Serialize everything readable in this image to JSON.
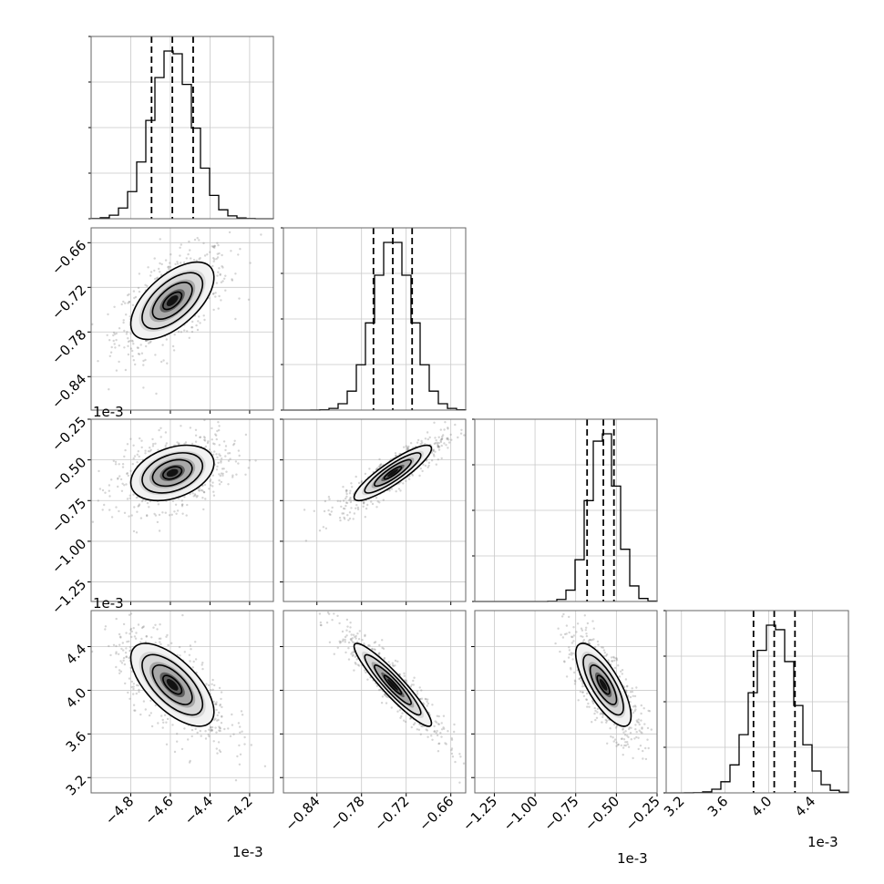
{
  "chart_data": {
    "type": "corner",
    "parameters": [
      {
        "index": 0,
        "offset_label": "1e-3",
        "median": -4.59,
        "sigma": 0.105,
        "q16": -4.695,
        "q50": -4.59,
        "q84": -4.485,
        "range": [
          -5.0,
          -4.08
        ],
        "ticks": [
          -4.8,
          -4.6,
          -4.4,
          -4.2
        ],
        "tick_labels": [
          "−4.8",
          "−4.6",
          "−4.4",
          "−4.2"
        ]
      },
      {
        "index": 1,
        "offset_label": "1e-3",
        "median": -0.738,
        "sigma": 0.026,
        "q16": -0.764,
        "q50": -0.738,
        "q84": -0.712,
        "range": [
          -0.885,
          -0.64
        ],
        "ticks": [
          -0.84,
          -0.78,
          -0.72,
          -0.66
        ],
        "tick_labels": [
          "−0.84",
          "−0.78",
          "−0.72",
          "−0.66"
        ]
      },
      {
        "index": 2,
        "offset_label": "1e-3",
        "median": -0.58,
        "sigma": 0.085,
        "q16": -0.68,
        "q50": -0.58,
        "q84": -0.515,
        "range": [
          -1.37,
          -0.25
        ],
        "ticks": [
          -1.25,
          -1.0,
          -0.75,
          -0.5,
          -0.25
        ],
        "tick_labels": [
          "−1.25",
          "−1.00",
          "−0.75",
          "−0.50",
          "−0.25"
        ]
      },
      {
        "index": 3,
        "offset_label": "1e-3",
        "median": 4.05,
        "sigma": 0.19,
        "q16": 3.86,
        "q50": 4.05,
        "q84": 4.24,
        "range": [
          3.06,
          4.73
        ],
        "ticks": [
          3.2,
          3.6,
          4.0,
          4.4
        ],
        "tick_labels": [
          "3.2",
          "3.6",
          "4.0",
          "4.4"
        ]
      }
    ],
    "correlations": {
      "1-0": 0.6,
      "2-0": 0.35,
      "2-1": 0.88,
      "3-0": -0.65,
      "3-1": -0.93,
      "3-2": -0.75
    },
    "histogram_bins": 20,
    "quantiles": [
      0.16,
      0.5,
      0.84
    ],
    "grid": true,
    "colors": {
      "hist": "#000000",
      "scatter": "#888888",
      "density": "#000000"
    }
  }
}
